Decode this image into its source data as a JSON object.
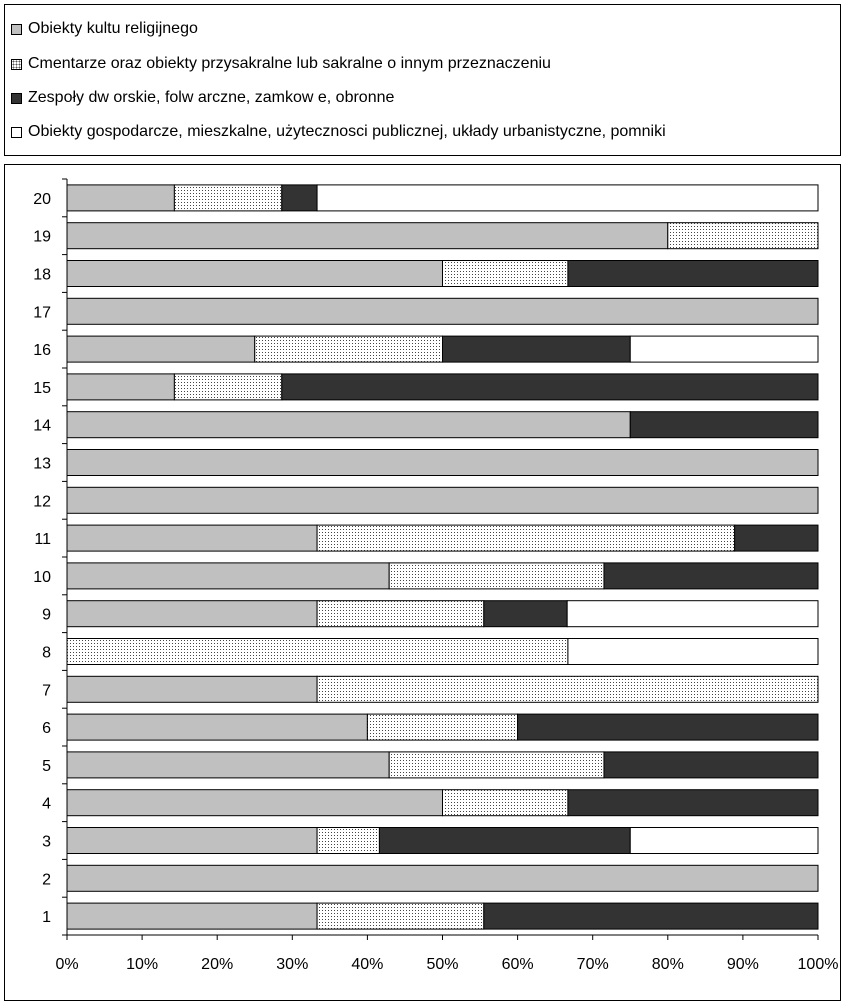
{
  "chart_data": {
    "type": "bar",
    "orientation": "horizontal",
    "stacked": "percent",
    "categories": [
      "1",
      "2",
      "3",
      "4",
      "5",
      "6",
      "7",
      "8",
      "9",
      "10",
      "11",
      "12",
      "13",
      "14",
      "15",
      "16",
      "17",
      "18",
      "19",
      "20"
    ],
    "series": [
      {
        "name": "Obiekty kultu religijnego",
        "color": "#c0c0c0",
        "pattern": "solid",
        "values": [
          33.3,
          100,
          33.3,
          50,
          42.9,
          40,
          33.3,
          0,
          33.3,
          42.9,
          33.3,
          100,
          100,
          75,
          14.3,
          25,
          100,
          50,
          80,
          14.3
        ]
      },
      {
        "name": "Cmentarze oraz obiekty przysakralne lub sakralne o innym przeznaczeniu",
        "color": "#d9d9d9",
        "pattern": "dotted",
        "values": [
          22.2,
          0,
          8.3,
          16.7,
          28.6,
          20,
          66.7,
          66.7,
          22.2,
          28.6,
          55.6,
          0,
          0,
          0,
          14.3,
          25,
          0,
          16.7,
          20,
          14.3
        ]
      },
      {
        "name": "Zespoły dw orskie, folw arczne, zamkow e, obronne",
        "color": "#333333",
        "pattern": "solid",
        "values": [
          44.5,
          0,
          33.4,
          33.3,
          28.5,
          40,
          0,
          0,
          11.1,
          28.5,
          11.1,
          0,
          0,
          25,
          71.4,
          25,
          0,
          33.3,
          0,
          4.7
        ]
      },
      {
        "name": "Obiekty gospodarcze, mieszkalne, użytecznosci publicznej, układy urbanistyczne, pomniki",
        "color": "#ffffff",
        "pattern": "solid",
        "values": [
          0,
          0,
          25,
          0,
          0,
          0,
          0,
          33.3,
          33.4,
          0,
          0,
          0,
          0,
          0,
          0,
          25,
          0,
          0,
          0,
          66.7
        ]
      }
    ],
    "x_ticks": [
      "0%",
      "10%",
      "20%",
      "30%",
      "40%",
      "50%",
      "60%",
      "70%",
      "80%",
      "90%",
      "100%"
    ],
    "xlim": [
      0,
      100
    ],
    "legend_position": "top",
    "grid": false,
    "title": "",
    "xlabel": "",
    "ylabel": ""
  }
}
